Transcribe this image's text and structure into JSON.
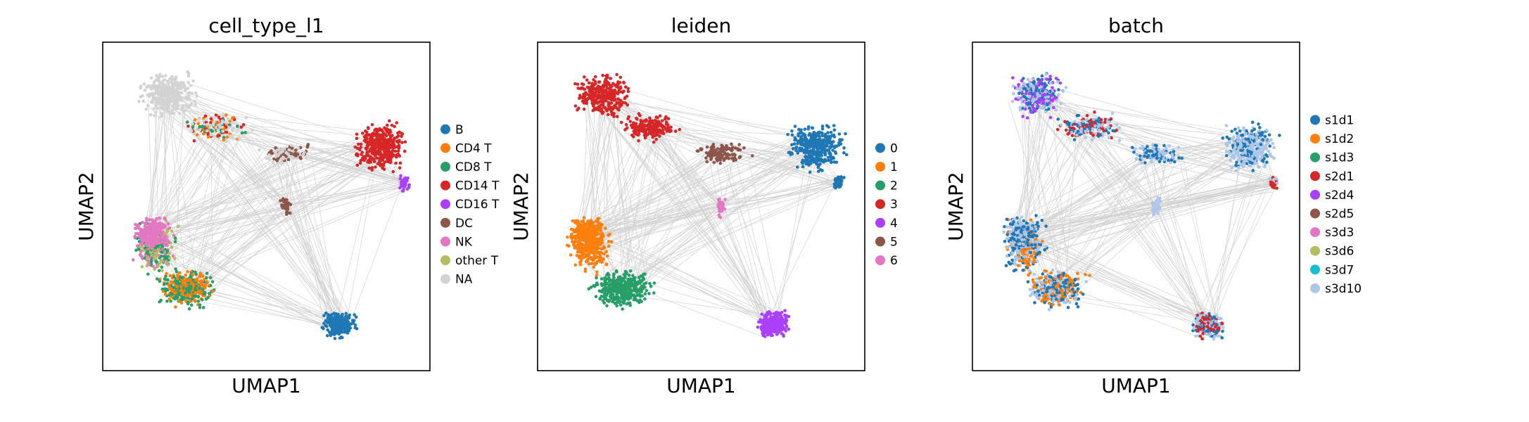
{
  "chart_data": [
    {
      "type": "scatter",
      "title": "cell_type_l1",
      "xlabel": "UMAP1",
      "ylabel": "UMAP2",
      "grid": false,
      "legend": "right",
      "edges_color": "#808080",
      "series": [
        {
          "name": "B",
          "color": "#1f77b4"
        },
        {
          "name": "CD4 T",
          "color": "#ff7f0e"
        },
        {
          "name": "CD8 T",
          "color": "#279e68"
        },
        {
          "name": "CD14 T",
          "color": "#d62728"
        },
        {
          "name": "CD16 T",
          "color": "#aa40fc"
        },
        {
          "name": "DC",
          "color": "#8c564b"
        },
        {
          "name": "NK",
          "color": "#e377c2"
        },
        {
          "name": "other T",
          "color": "#b5bd61"
        },
        {
          "name": "NA",
          "color": "#d3d3d3"
        }
      ]
    },
    {
      "type": "scatter",
      "title": "leiden",
      "xlabel": "UMAP1",
      "ylabel": "UMAP2",
      "grid": false,
      "legend": "right",
      "edges_color": "#808080",
      "series": [
        {
          "name": "0",
          "color": "#1f77b4"
        },
        {
          "name": "1",
          "color": "#ff7f0e"
        },
        {
          "name": "2",
          "color": "#279e68"
        },
        {
          "name": "3",
          "color": "#d62728"
        },
        {
          "name": "4",
          "color": "#aa40fc"
        },
        {
          "name": "5",
          "color": "#8c564b"
        },
        {
          "name": "6",
          "color": "#e377c2"
        }
      ]
    },
    {
      "type": "scatter",
      "title": "batch",
      "xlabel": "UMAP1",
      "ylabel": "UMAP2",
      "grid": false,
      "legend": "right",
      "edges_color": "#808080",
      "series": [
        {
          "name": "s1d1",
          "color": "#1f77b4"
        },
        {
          "name": "s1d2",
          "color": "#ff7f0e"
        },
        {
          "name": "s1d3",
          "color": "#279e68"
        },
        {
          "name": "s2d1",
          "color": "#d62728"
        },
        {
          "name": "s2d4",
          "color": "#aa40fc"
        },
        {
          "name": "s2d5",
          "color": "#8c564b"
        },
        {
          "name": "s3d3",
          "color": "#e377c2"
        },
        {
          "name": "s3d6",
          "color": "#b5bd61"
        },
        {
          "name": "s3d7",
          "color": "#17becf"
        },
        {
          "name": "s3d10",
          "color": "#aec7e8"
        }
      ]
    }
  ]
}
